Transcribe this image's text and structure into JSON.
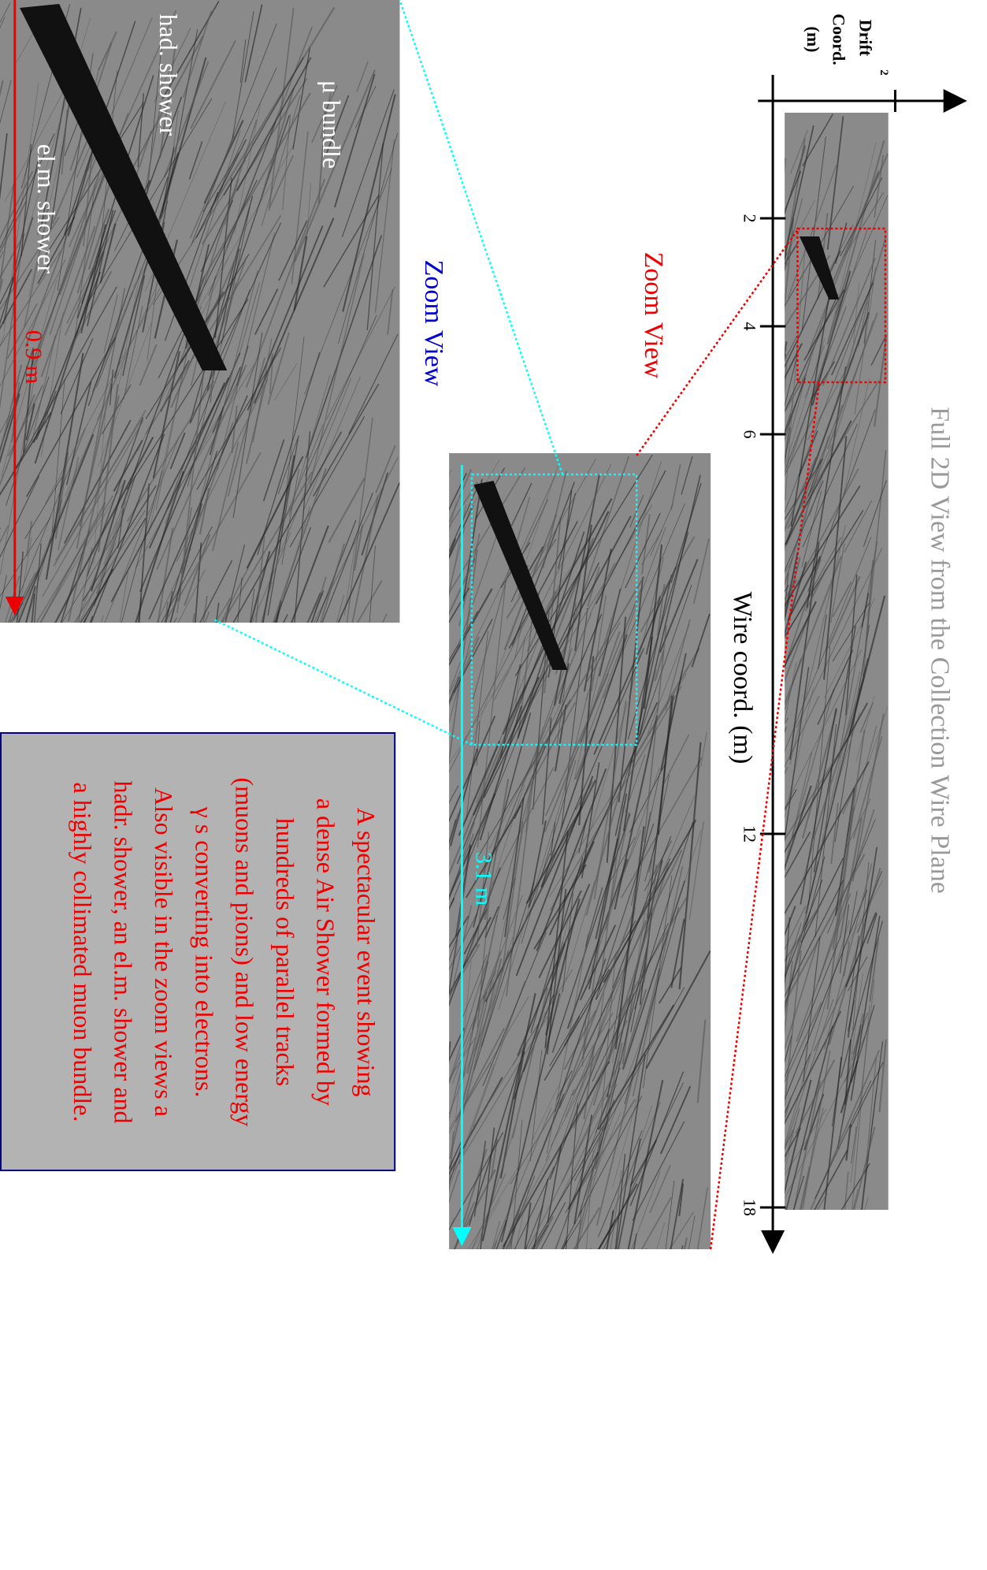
{
  "full_view": {
    "title": "Full 2D View from the Collection Wire Plane",
    "x_axis_label": "Wire coord. (m)",
    "y_axis_label": {
      "line1": "Drift",
      "superscript": "2",
      "line2": "Coord.",
      "line3": "(m)"
    },
    "ticks": [
      "2",
      "4",
      "6",
      "12",
      "18"
    ],
    "zoom_label": "Zoom View"
  },
  "zoom_view": {
    "label": "Zoom View",
    "scale": "3.1 m"
  },
  "detail_view": {
    "scale": "0.9 m",
    "labels": [
      "μ bundle",
      "had. shower",
      "el.m. shower"
    ]
  },
  "caption": {
    "lines": [
      "A spectacular event showing",
      "a dense Air Shower formed by",
      "hundreds of parallel tracks",
      "(muons and pions) and low energy",
      "γ s converting into electrons.",
      "Also visible in the zoom views a",
      "hadr. shower, an el.m. shower and",
      "a highly collimated muon bundle."
    ]
  }
}
